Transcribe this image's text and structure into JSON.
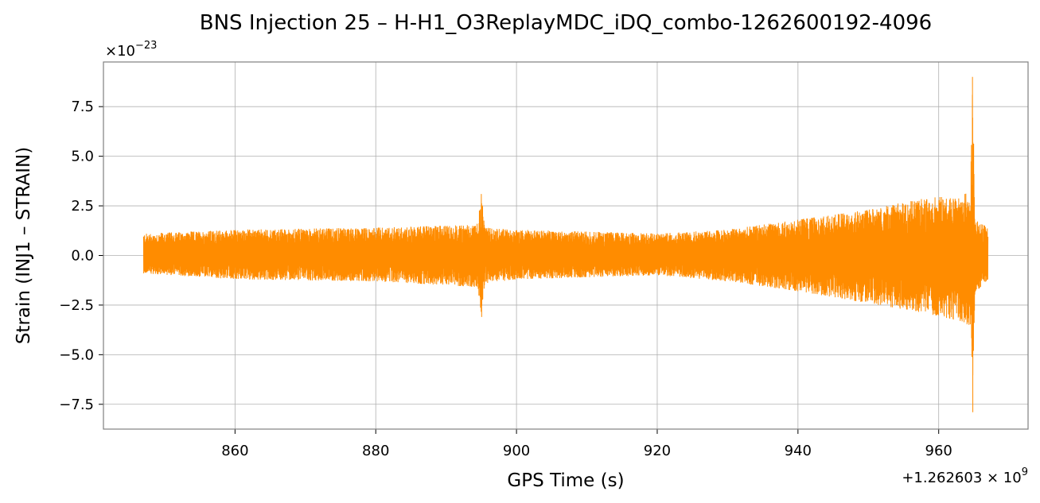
{
  "chart_data": {
    "type": "line",
    "title": "BNS Injection 25 – H-H1_O3ReplayMDC_iDQ_combo-1262600192-4096",
    "xlabel": "GPS Time (s)",
    "ylabel": "Strain (INJ1 – STRAIN)",
    "x_offset_text": "+1.262603 × 10",
    "x_offset_exp": "9",
    "y_scale_text": "×10",
    "y_scale_exp": "−23",
    "xlim": [
      841.3,
      972.7
    ],
    "ylim": [
      -8.75,
      9.75
    ],
    "x_ticks": [
      860,
      880,
      900,
      920,
      940,
      960
    ],
    "x_tick_labels": [
      "860",
      "880",
      "900",
      "920",
      "940",
      "960"
    ],
    "y_ticks": [
      -7.5,
      -5.0,
      -2.5,
      0.0,
      2.5,
      5.0,
      7.5
    ],
    "y_tick_labels": [
      "−7.5",
      "−5.0",
      "−2.5",
      "0.0",
      "2.5",
      "5.0",
      "7.5"
    ],
    "grid": true,
    "series": [
      {
        "color": "#ff8c00",
        "x_start": 847.0,
        "x_end": 967.0,
        "upper_envelope": [
          [
            847.0,
            1.1
          ],
          [
            860.0,
            1.3
          ],
          [
            880.0,
            1.4
          ],
          [
            890.0,
            1.5
          ],
          [
            894.5,
            1.6
          ],
          [
            895.0,
            3.1
          ],
          [
            895.5,
            1.4
          ],
          [
            900.0,
            1.3
          ],
          [
            910.0,
            1.2
          ],
          [
            920.0,
            1.1
          ],
          [
            930.0,
            1.3
          ],
          [
            940.0,
            1.8
          ],
          [
            950.0,
            2.3
          ],
          [
            958.0,
            2.9
          ],
          [
            963.0,
            3.0
          ],
          [
            964.5,
            3.2
          ],
          [
            964.8,
            9.0
          ],
          [
            965.2,
            1.8
          ],
          [
            967.0,
            1.4
          ]
        ],
        "lower_envelope": [
          [
            847.0,
            -0.9
          ],
          [
            860.0,
            -1.2
          ],
          [
            880.0,
            -1.3
          ],
          [
            890.0,
            -1.5
          ],
          [
            894.5,
            -1.6
          ],
          [
            895.0,
            -3.1
          ],
          [
            895.5,
            -1.4
          ],
          [
            900.0,
            -1.2
          ],
          [
            910.0,
            -1.1
          ],
          [
            920.0,
            -1.0
          ],
          [
            930.0,
            -1.3
          ],
          [
            940.0,
            -1.8
          ],
          [
            950.0,
            -2.4
          ],
          [
            958.0,
            -2.9
          ],
          [
            963.0,
            -3.3
          ],
          [
            964.5,
            -3.6
          ],
          [
            964.8,
            -7.9
          ],
          [
            965.2,
            -1.9
          ],
          [
            967.0,
            -1.2
          ]
        ]
      }
    ]
  }
}
